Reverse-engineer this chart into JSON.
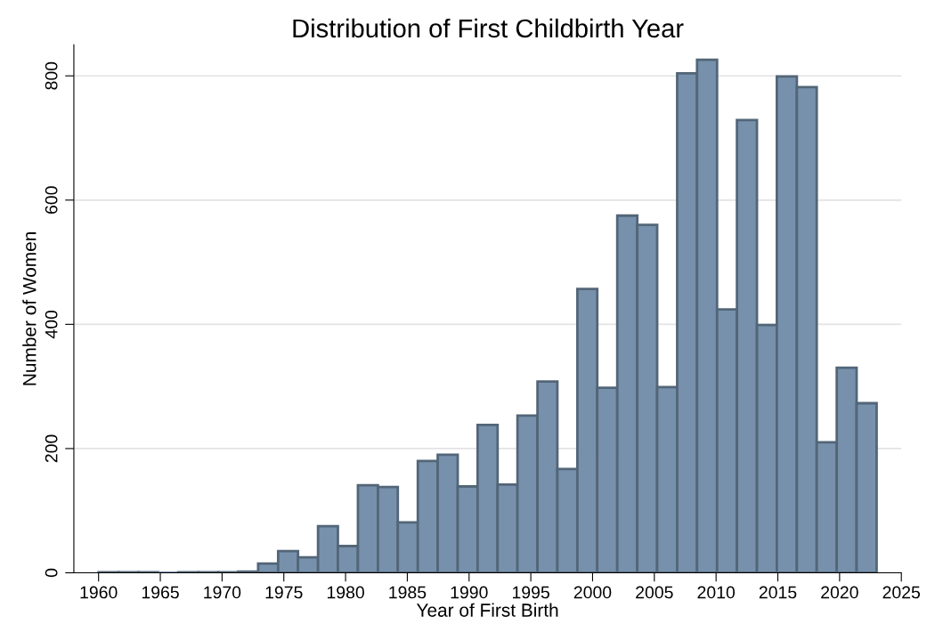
{
  "chart_data": {
    "type": "histogram",
    "title": "Distribution of First Childbirth Year",
    "xlabel": "Year of First Birth",
    "ylabel": "Number of Women",
    "bins": [
      1960,
      1961.62,
      1963.23,
      1964.85,
      1966.46,
      1968.08,
      1969.69,
      1971.31,
      1972.92,
      1974.54,
      1976.15,
      1977.77,
      1979.38,
      1981,
      1982.62,
      1984.23,
      1985.85,
      1987.46,
      1989.08,
      1990.69,
      1992.31,
      1993.92,
      1995.54,
      1997.15,
      1998.77,
      2000.38,
      2002,
      2003.62,
      2005.23,
      2006.85,
      2008.46,
      2010.08,
      2011.69,
      2013.31,
      2014.92,
      2016.54,
      2018.15,
      2019.77,
      2021.38,
      2023
    ],
    "values": [
      1,
      1,
      1,
      0,
      1,
      1,
      1,
      2,
      15,
      35,
      25,
      75,
      43,
      141,
      138,
      81,
      180,
      190,
      139,
      238,
      142,
      253,
      308,
      167,
      457,
      298,
      575,
      560,
      299,
      804,
      826,
      424,
      729,
      399,
      799,
      782,
      210,
      330,
      273
    ],
    "color": "#7791ac",
    "xlim": [
      1958,
      2025
    ],
    "xticks": [
      1960,
      1965,
      1970,
      1975,
      1980,
      1985,
      1990,
      1995,
      2000,
      2005,
      2010,
      2015,
      2020,
      2025
    ],
    "ylim": [
      0,
      850
    ],
    "yticks": [
      0,
      200,
      400,
      600,
      800
    ],
    "grid": "y"
  }
}
